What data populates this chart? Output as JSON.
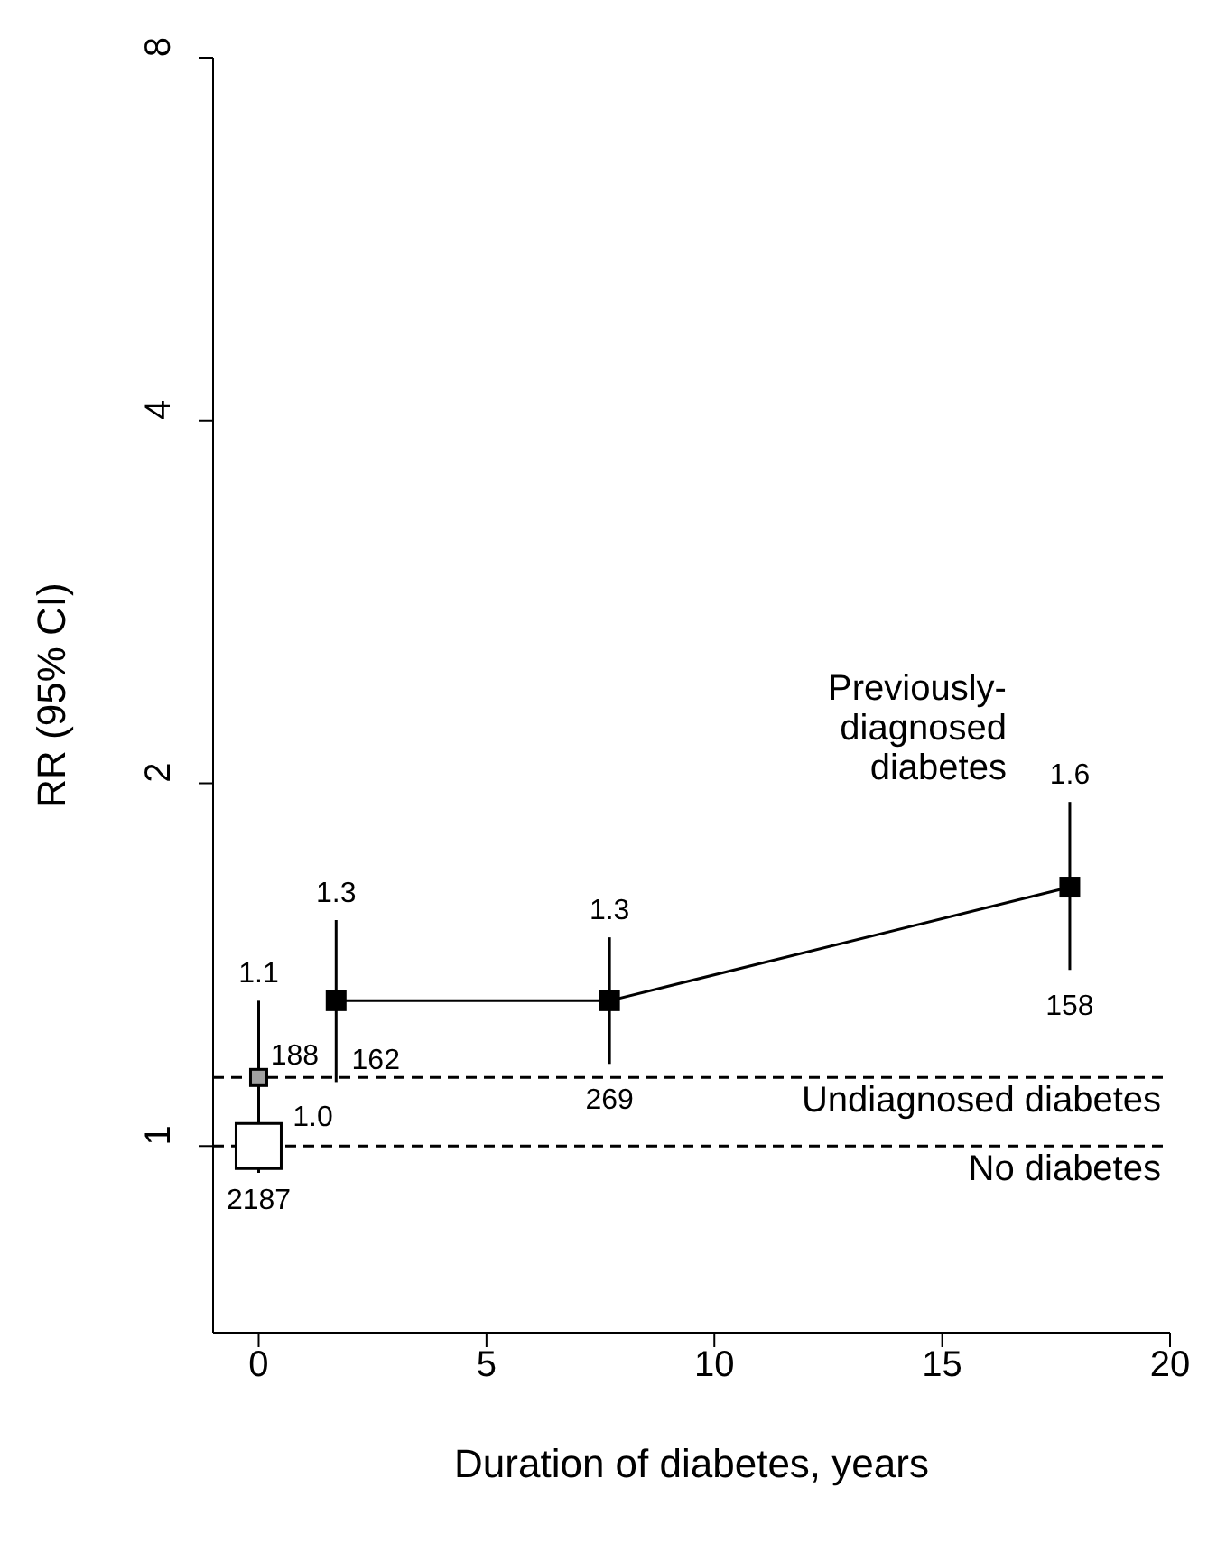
{
  "chart_data": {
    "type": "scatter",
    "xlabel": "Duration of diabetes, years",
    "ylabel": "RR (95% CI)",
    "xlim": [
      -1,
      20
    ],
    "xticks": [
      0,
      5,
      10,
      15,
      20
    ],
    "ylim": [
      0.7,
      8
    ],
    "yticks": [
      1,
      2,
      4,
      8
    ],
    "log": "y",
    "grid": false,
    "marker": "square",
    "series": [
      {
        "color": "#ffffff",
        "x": [
          0
        ],
        "values": [
          1.0
        ],
        "value_labels": [
          "1.0"
        ]
      },
      {
        "color": "#a0a0a0",
        "x": [
          0
        ],
        "values": [
          1.14
        ],
        "errors": [
          [
            0.95,
            1.32
          ]
        ],
        "value_labels": [
          "1.1"
        ]
      },
      {
        "type": "line",
        "name": "Previously-\ndiagnosed\ndiabetes",
        "color": "#000000",
        "x": [
          1.7,
          7.7,
          17.8
        ],
        "values": [
          1.32,
          1.32,
          1.64
        ],
        "errors": [
          [
            1.13,
            1.54
          ],
          [
            1.17,
            1.49
          ],
          [
            1.4,
            1.93
          ]
        ],
        "value_labels": [
          "1.3",
          "1.3",
          "1.6"
        ]
      }
    ],
    "ref_lines": [
      {
        "axis": "y",
        "value": 1.14,
        "label": "Undiagnosed diabetes",
        "color": "#000000",
        "line_style": "dashed"
      },
      {
        "axis": "y",
        "value": 1.0,
        "label": "No diabetes",
        "color": "#000000",
        "line_style": "dashed"
      }
    ],
    "annotations": [
      {
        "text": "2187",
        "x": 0,
        "y": 1.0
      },
      {
        "text": "188",
        "x": 0,
        "y": 1.14
      },
      {
        "text": "162",
        "x": 1.7,
        "y": 1.13
      },
      {
        "text": "269",
        "x": 7.7,
        "y": 1.17
      },
      {
        "text": "158",
        "x": 17.8,
        "y": 1.4
      }
    ]
  }
}
